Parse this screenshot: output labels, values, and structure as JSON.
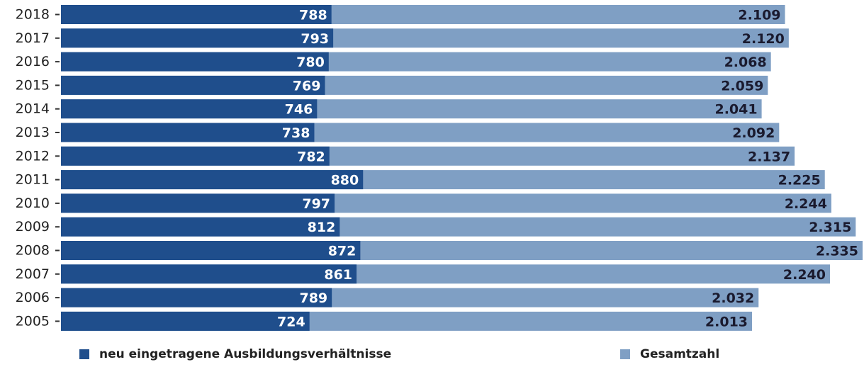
{
  "chart_data": {
    "type": "bar",
    "orientation": "horizontal",
    "overlap": true,
    "categories": [
      "2018",
      "2017",
      "2016",
      "2015",
      "2014",
      "2013",
      "2012",
      "2011",
      "2010",
      "2009",
      "2008",
      "2007",
      "2006",
      "2005"
    ],
    "series": [
      {
        "name": "Gesamtzahl",
        "color": "#7f9fc4",
        "values": [
          2109,
          2120,
          2068,
          2059,
          2041,
          2092,
          2137,
          2225,
          2244,
          2315,
          2335,
          2240,
          2032,
          2013
        ],
        "value_labels": [
          "2.109",
          "2.120",
          "2.068",
          "2.059",
          "2.041",
          "2.092",
          "2.137",
          "2.225",
          "2.244",
          "2.315",
          "2.335",
          "2.240",
          "2.032",
          "2.013"
        ]
      },
      {
        "name": "neu eingetragene Ausbildungsverhältnisse",
        "color": "#1f4e8c",
        "values": [
          788,
          793,
          780,
          769,
          746,
          738,
          782,
          880,
          797,
          812,
          872,
          861,
          789,
          724
        ]
      }
    ],
    "legend": "bottom"
  }
}
